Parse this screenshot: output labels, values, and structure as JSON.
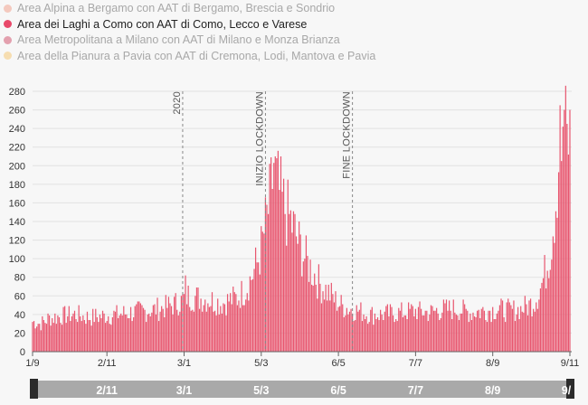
{
  "legend": {
    "items": [
      {
        "label": "Area Alpina a Bergamo con AAT di Bergamo, Brescia e Sondrio",
        "color": "#f4c9be",
        "active": false
      },
      {
        "label": "Area dei Laghi a Como con AAT di Como, Lecco e Varese",
        "color": "#e8496a",
        "active": true
      },
      {
        "label": "Area Metropolitana a Milano con AAT di Milano e Monza Brianza",
        "color": "#e3a0ae",
        "active": false
      },
      {
        "label": "Area della Pianura a Pavia con AAT di Cremona, Lodi, Mantova e Pavia",
        "color": "#f6ddb0",
        "active": false
      }
    ]
  },
  "chart_data": {
    "type": "bar",
    "series_name": "Area dei Laghi a Como con AAT di Como, Lecco e Varese",
    "color": "#e8566f",
    "ylim": [
      0,
      280
    ],
    "yticks": [
      0,
      20,
      40,
      60,
      80,
      100,
      120,
      140,
      160,
      180,
      200,
      220,
      240,
      260,
      280
    ],
    "xticks": [
      {
        "day": 0,
        "label": "1/9"
      },
      {
        "day": 53,
        "label": "2/11"
      },
      {
        "day": 108,
        "label": "3/1"
      },
      {
        "day": 163,
        "label": "5/3"
      },
      {
        "day": 218,
        "label": "6/5"
      },
      {
        "day": 273,
        "label": "7/7"
      },
      {
        "day": 328,
        "label": "8/9"
      },
      {
        "day": 383,
        "label": "9/11"
      }
    ],
    "annotations": [
      {
        "day": 107,
        "label": "2020"
      },
      {
        "day": 166,
        "label": "INIZIO LOCKDOWN"
      },
      {
        "day": 228,
        "label": "FINE LOCKDOWN"
      }
    ],
    "anchors": [
      [
        0,
        32
      ],
      [
        6,
        30
      ],
      [
        12,
        36
      ],
      [
        20,
        38
      ],
      [
        30,
        40
      ],
      [
        40,
        37
      ],
      [
        50,
        38
      ],
      [
        60,
        40
      ],
      [
        70,
        42
      ],
      [
        80,
        44
      ],
      [
        90,
        46
      ],
      [
        100,
        50
      ],
      [
        106,
        54
      ],
      [
        110,
        60
      ],
      [
        118,
        58
      ],
      [
        126,
        56
      ],
      [
        134,
        52
      ],
      [
        140,
        55
      ],
      [
        146,
        58
      ],
      [
        152,
        68
      ],
      [
        156,
        80
      ],
      [
        160,
        95
      ],
      [
        163,
        110
      ],
      [
        166,
        135
      ],
      [
        169,
        160
      ],
      [
        172,
        195
      ],
      [
        175,
        175
      ],
      [
        178,
        160
      ],
      [
        181,
        150
      ],
      [
        184,
        140
      ],
      [
        187,
        128
      ],
      [
        190,
        115
      ],
      [
        193,
        105
      ],
      [
        196,
        95
      ],
      [
        199,
        88
      ],
      [
        202,
        80
      ],
      [
        205,
        72
      ],
      [
        208,
        68
      ],
      [
        212,
        62
      ],
      [
        216,
        55
      ],
      [
        220,
        50
      ],
      [
        226,
        46
      ],
      [
        232,
        44
      ],
      [
        240,
        40
      ],
      [
        250,
        40
      ],
      [
        262,
        42
      ],
      [
        272,
        44
      ],
      [
        282,
        42
      ],
      [
        292,
        45
      ],
      [
        302,
        46
      ],
      [
        312,
        42
      ],
      [
        322,
        44
      ],
      [
        332,
        46
      ],
      [
        340,
        44
      ],
      [
        348,
        46
      ],
      [
        354,
        50
      ],
      [
        358,
        55
      ],
      [
        362,
        68
      ],
      [
        366,
        88
      ],
      [
        369,
        110
      ],
      [
        372,
        150
      ],
      [
        374,
        185
      ],
      [
        376,
        220
      ],
      [
        378,
        248
      ],
      [
        380,
        235
      ],
      [
        382,
        230
      ],
      [
        383,
        210
      ]
    ],
    "spikes": [
      {
        "day": 109,
        "value": 82
      },
      {
        "day": 172,
        "value": 203
      },
      {
        "day": 174,
        "value": 208
      },
      {
        "day": 376,
        "value": 265
      },
      {
        "day": 377,
        "value": 205
      },
      {
        "day": 379,
        "value": 260
      },
      {
        "day": 381,
        "value": 245
      },
      {
        "day": 383,
        "value": 260
      }
    ]
  },
  "navigator": {
    "labels": [
      {
        "day": 53,
        "label": "2/11"
      },
      {
        "day": 108,
        "label": "3/1"
      },
      {
        "day": 163,
        "label": "5/3"
      },
      {
        "day": 218,
        "label": "6/5"
      },
      {
        "day": 273,
        "label": "7/7"
      },
      {
        "day": 328,
        "label": "8/9"
      },
      {
        "day": 383,
        "label": "9/"
      }
    ]
  }
}
